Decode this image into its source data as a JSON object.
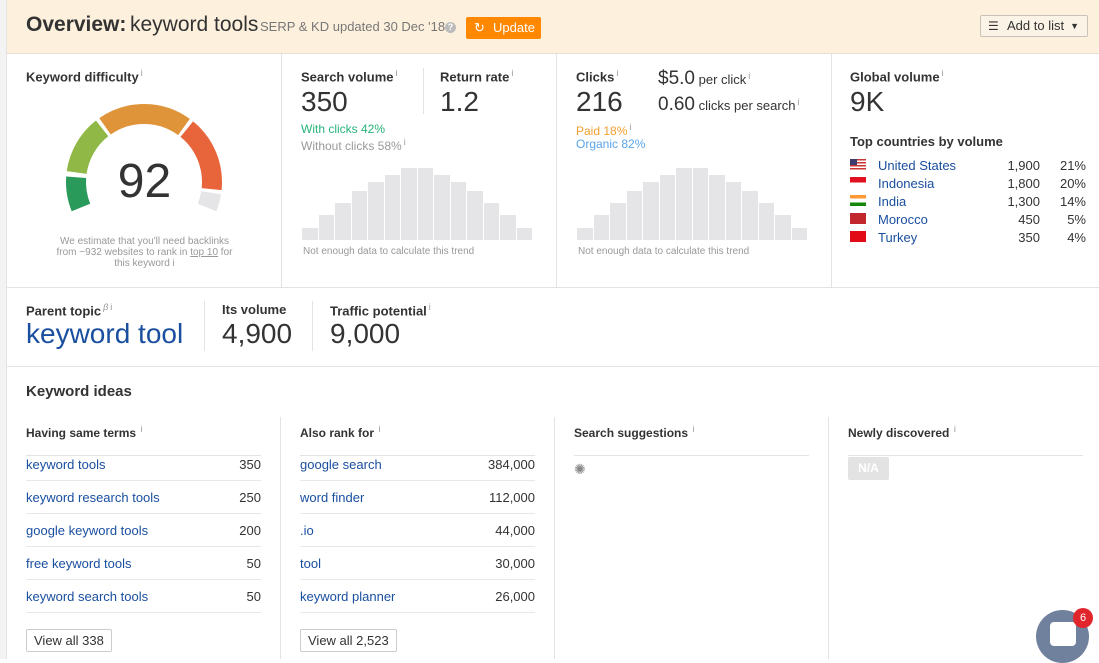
{
  "header": {
    "title": "Overview:",
    "keyword": "keyword tools",
    "updated": "SERP & KD updated 30 Dec '18",
    "help_icon": "question-icon",
    "update_label": "Update",
    "add_to_list_label": "Add to list"
  },
  "kd": {
    "label": "Keyword difficulty",
    "value": "92",
    "note_pre": "We estimate that you'll need backlinks from ~932 websites to rank in ",
    "note_link": "top 10",
    "note_post": " for this keyword",
    "score": 92
  },
  "search_volume": {
    "label": "Search volume",
    "value": "350",
    "return_label": "Return rate",
    "return_value": "1.2",
    "with_clicks": "With clicks 42%",
    "without_clicks": "Without clicks 58%",
    "trend_note": "Not enough data to calculate this trend"
  },
  "clicks": {
    "label": "Clicks",
    "value": "216",
    "cpc": "$5.0",
    "cpc_label": "per click",
    "cps": "0.60",
    "cps_label": "clicks per search",
    "paid": "Paid 18%",
    "organic": "Organic 82%",
    "trend_note": "Not enough data to calculate this trend",
    "paid_color": "#f0a030",
    "organic_color": "#5aa5e8"
  },
  "global": {
    "label": "Global volume",
    "value": "9K",
    "top_label": "Top countries by volume",
    "countries": [
      {
        "name": "United States",
        "volume": "1,900",
        "pct": "21%",
        "flag": "us"
      },
      {
        "name": "Indonesia",
        "volume": "1,800",
        "pct": "20%",
        "flag": "id"
      },
      {
        "name": "India",
        "volume": "1,300",
        "pct": "14%",
        "flag": "in"
      },
      {
        "name": "Morocco",
        "volume": "450",
        "pct": "5%",
        "flag": "ma"
      },
      {
        "name": "Turkey",
        "volume": "350",
        "pct": "4%",
        "flag": "tr"
      }
    ]
  },
  "parent": {
    "label": "Parent topic",
    "beta": "β",
    "keyword": "keyword tool",
    "vol_label": "Its volume",
    "vol": "4,900",
    "tp_label": "Traffic potential",
    "tp": "9,000"
  },
  "ideas": {
    "title": "Keyword ideas",
    "columns": [
      {
        "title": "Having same terms",
        "items": [
          {
            "k": "keyword tools",
            "v": "350"
          },
          {
            "k": "keyword research tools",
            "v": "250"
          },
          {
            "k": "google keyword tools",
            "v": "200"
          },
          {
            "k": "free keyword tools",
            "v": "50"
          },
          {
            "k": "keyword search tools",
            "v": "50"
          }
        ],
        "view_all": "View all 338"
      },
      {
        "title": "Also rank for",
        "items": [
          {
            "k": "google search",
            "v": "384,000"
          },
          {
            "k": "word finder",
            "v": "112,000"
          },
          {
            "k": ".io",
            "v": "44,000"
          },
          {
            "k": "tool",
            "v": "30,000"
          },
          {
            "k": "keyword planner",
            "v": "26,000"
          }
        ],
        "view_all": "View all 2,523"
      },
      {
        "title": "Search suggestions",
        "items": []
      },
      {
        "title": "Newly discovered",
        "items": [],
        "na": "N/A"
      }
    ]
  },
  "chat": {
    "badge": "6"
  },
  "colors": {
    "accent": "#ff8800",
    "link": "#1a4fa0",
    "header_bg": "#fdf0dc"
  }
}
